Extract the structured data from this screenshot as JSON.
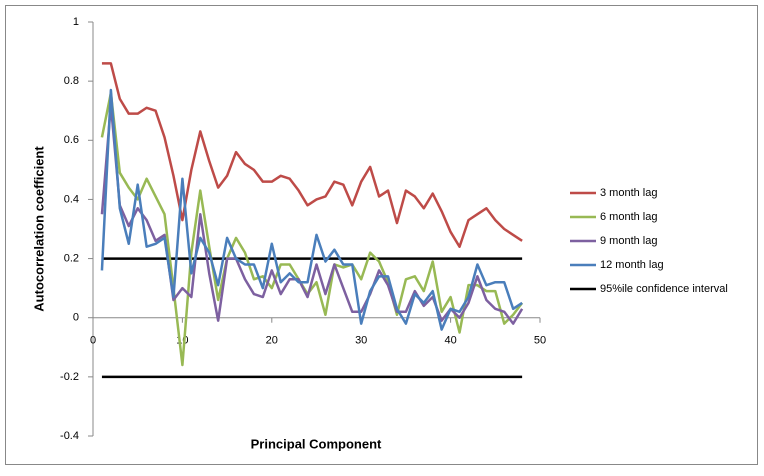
{
  "chart_data": {
    "type": "line",
    "x_label": "Principal Component",
    "y_label": "Autocorrelation coefficient",
    "x": [
      1,
      2,
      3,
      4,
      5,
      6,
      7,
      8,
      9,
      10,
      11,
      12,
      13,
      14,
      15,
      16,
      17,
      18,
      19,
      20,
      21,
      22,
      23,
      24,
      25,
      26,
      27,
      28,
      29,
      30,
      31,
      32,
      33,
      34,
      35,
      36,
      37,
      38,
      39,
      40,
      41,
      42,
      43,
      44,
      45,
      46,
      47,
      48
    ],
    "series": [
      {
        "name": "3 month lag",
        "color": "#be4b48",
        "values": [
          0.86,
          0.86,
          0.74,
          0.69,
          0.69,
          0.71,
          0.7,
          0.61,
          0.48,
          0.33,
          0.5,
          0.63,
          0.53,
          0.44,
          0.48,
          0.56,
          0.52,
          0.5,
          0.46,
          0.46,
          0.48,
          0.47,
          0.43,
          0.38,
          0.4,
          0.41,
          0.46,
          0.45,
          0.38,
          0.46,
          0.51,
          0.41,
          0.43,
          0.32,
          0.43,
          0.41,
          0.37,
          0.42,
          0.36,
          0.29,
          0.24,
          0.33,
          0.35,
          0.37,
          0.33,
          0.3,
          0.28,
          0.26
        ]
      },
      {
        "name": "6 month lag",
        "color": "#98b954",
        "values": [
          0.61,
          0.76,
          0.49,
          0.44,
          0.4,
          0.47,
          0.41,
          0.35,
          0.1,
          -0.16,
          0.22,
          0.43,
          0.24,
          0.06,
          0.2,
          0.27,
          0.22,
          0.13,
          0.14,
          0.1,
          0.18,
          0.18,
          0.13,
          0.08,
          0.12,
          0.01,
          0.18,
          0.17,
          0.18,
          0.13,
          0.22,
          0.19,
          0.12,
          0.01,
          0.13,
          0.14,
          0.09,
          0.19,
          0.02,
          0.07,
          -0.05,
          0.11,
          0.11,
          0.09,
          0.09,
          -0.02,
          0.01,
          0.05
        ]
      },
      {
        "name": "9 month lag",
        "color": "#7d60a0",
        "values": [
          0.35,
          0.72,
          0.38,
          0.31,
          0.37,
          0.33,
          0.26,
          0.28,
          0.06,
          0.1,
          0.07,
          0.35,
          0.15,
          -0.01,
          0.2,
          0.2,
          0.13,
          0.08,
          0.07,
          0.16,
          0.08,
          0.13,
          0.13,
          0.07,
          0.18,
          0.08,
          0.18,
          0.1,
          0.02,
          0.02,
          0.08,
          0.16,
          0.11,
          0.02,
          0.02,
          0.09,
          0.04,
          0.07,
          -0.01,
          0.03,
          0.0,
          0.05,
          0.14,
          0.06,
          0.03,
          0.02,
          -0.02,
          0.03
        ]
      },
      {
        "name": "12 month lag",
        "color": "#4a7ebb",
        "values": [
          0.16,
          0.77,
          0.37,
          0.25,
          0.45,
          0.24,
          0.25,
          0.27,
          0.07,
          0.47,
          0.15,
          0.27,
          0.22,
          0.11,
          0.27,
          0.2,
          0.18,
          0.18,
          0.1,
          0.25,
          0.12,
          0.15,
          0.12,
          0.12,
          0.28,
          0.19,
          0.23,
          0.18,
          0.18,
          -0.02,
          0.09,
          0.14,
          0.14,
          0.03,
          -0.02,
          0.08,
          0.05,
          0.09,
          -0.04,
          0.03,
          0.02,
          0.07,
          0.18,
          0.11,
          0.12,
          0.12,
          0.03,
          0.05
        ]
      }
    ],
    "confidence_interval": {
      "name": "95%ile confidence interval",
      "color": "#000000",
      "x": [
        1,
        48
      ],
      "upper": [
        0.2,
        0.2
      ],
      "lower": [
        -0.2,
        -0.2
      ]
    },
    "xlim": [
      0,
      50
    ],
    "xticks": [
      0,
      10,
      20,
      30,
      40,
      50
    ],
    "ylim": [
      -0.4,
      1
    ],
    "yticks": [
      -0.4,
      -0.2,
      0,
      0.2,
      0.4,
      0.6,
      0.8,
      1
    ],
    "grid": false,
    "legend": "right"
  }
}
